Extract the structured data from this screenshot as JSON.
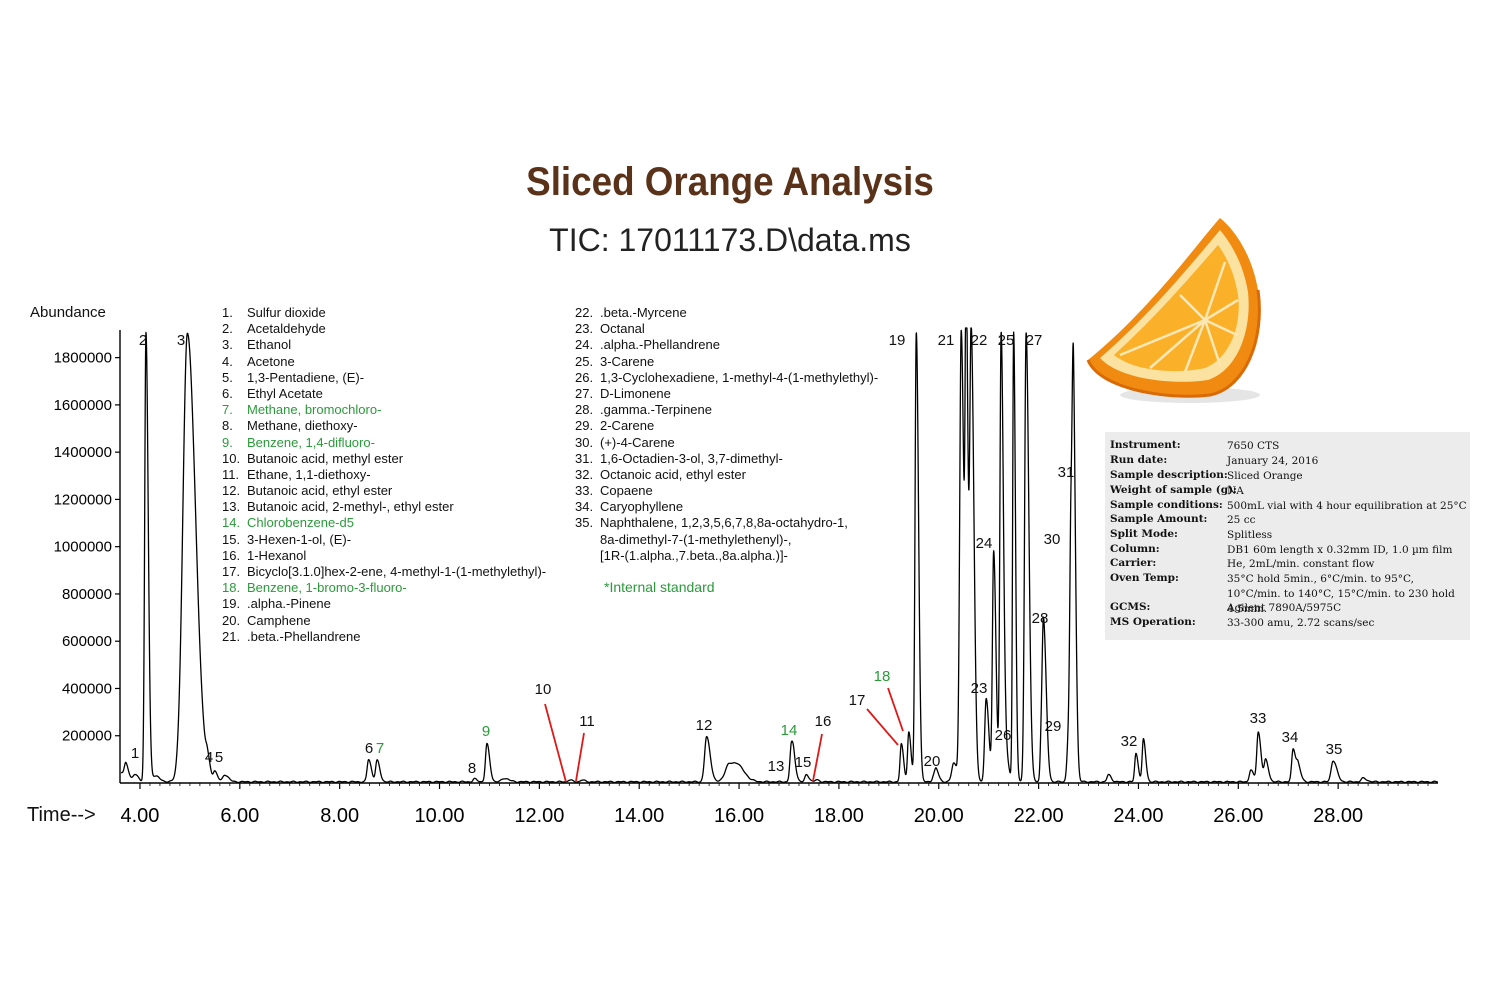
{
  "title": "Sliced Orange Analysis",
  "subtitle": "TIC: 17011173.D\\data.ms",
  "y_axis_title": "Abundance",
  "x_axis_title": "Time-->",
  "internal_standard_note": "*Internal standard",
  "colors": {
    "title": "#5a3219",
    "trace": "#000000",
    "standard": "#2a9a3a",
    "pointer": "#e01818",
    "info_bg": "#ececec"
  },
  "compounds_col1": [
    {
      "num": "1.",
      "name": "Sulfur dioxide",
      "standard": false
    },
    {
      "num": "2.",
      "name": "Acetaldehyde",
      "standard": false
    },
    {
      "num": "3.",
      "name": "Ethanol",
      "standard": false
    },
    {
      "num": "4.",
      "name": "Acetone",
      "standard": false
    },
    {
      "num": "5.",
      "name": "1,3-Pentadiene, (E)-",
      "standard": false
    },
    {
      "num": "6.",
      "name": "Ethyl Acetate",
      "standard": false
    },
    {
      "num": "7.",
      "name": "Methane, bromochloro-",
      "standard": true
    },
    {
      "num": "8.",
      "name": "Methane, diethoxy-",
      "standard": false
    },
    {
      "num": "9.",
      "name": "Benzene, 1,4-difluoro-",
      "standard": true
    },
    {
      "num": "10.",
      "name": "Butanoic acid, methyl ester",
      "standard": false
    },
    {
      "num": "11.",
      "name": "Ethane, 1,1-diethoxy-",
      "standard": false
    },
    {
      "num": "12.",
      "name": "Butanoic acid, ethyl ester",
      "standard": false
    },
    {
      "num": "13.",
      "name": "Butanoic acid, 2-methyl-, ethyl ester",
      "standard": false
    },
    {
      "num": "14.",
      "name": "Chlorobenzene-d5",
      "standard": true
    },
    {
      "num": "15.",
      "name": "3-Hexen-1-ol, (E)-",
      "standard": false
    },
    {
      "num": "16.",
      "name": "1-Hexanol",
      "standard": false
    },
    {
      "num": "17.",
      "name": "Bicyclo[3.1.0]hex-2-ene, 4-methyl-1-(1-methylethyl)-",
      "standard": false
    },
    {
      "num": "18.",
      "name": "Benzene, 1-bromo-3-fluoro-",
      "standard": true
    },
    {
      "num": "19.",
      "name": ".alpha.-Pinene",
      "standard": false
    },
    {
      "num": "20.",
      "name": "Camphene",
      "standard": false
    },
    {
      "num": "21.",
      "name": ".beta.-Phellandrene",
      "standard": false
    }
  ],
  "compounds_col2": [
    {
      "num": "22.",
      "name": ".beta.-Myrcene"
    },
    {
      "num": "23.",
      "name": "Octanal"
    },
    {
      "num": "24.",
      "name": ".alpha.-Phellandrene"
    },
    {
      "num": "25.",
      "name": "3-Carene"
    },
    {
      "num": "26.",
      "name": "1,3-Cyclohexadiene, 1-methyl-4-(1-methylethyl)-"
    },
    {
      "num": "27.",
      "name": "D-Limonene"
    },
    {
      "num": "28.",
      "name": ".gamma.-Terpinene"
    },
    {
      "num": "29.",
      "name": "2-Carene"
    },
    {
      "num": "30.",
      "name": "(+)-4-Carene"
    },
    {
      "num": "31.",
      "name": "1,6-Octadien-3-ol, 3,7-dimethyl-"
    },
    {
      "num": "32.",
      "name": "Octanoic acid, ethyl ester"
    },
    {
      "num": "33.",
      "name": "Copaene"
    },
    {
      "num": "34.",
      "name": "Caryophyllene"
    },
    {
      "num": "35.",
      "name": "Naphthalene, 1,2,3,5,6,7,8,8a-octahydro-1,"
    }
  ],
  "compound_35_continuation": [
    "8a-dimethyl-7-(1-methylethenyl)-,",
    "[1R-(1.alpha.,7.beta.,8a.alpha.)]-"
  ],
  "instrument_info": [
    {
      "key": "Instrument:",
      "value": "7650 CTS"
    },
    {
      "key": "Run date:",
      "value": "January 24, 2016"
    },
    {
      "key": "Sample description:",
      "value": "Sliced Orange"
    },
    {
      "key": "Weight of sample (g):",
      "value": "NA"
    },
    {
      "key": "Sample conditions:",
      "value": "500mL vial with 4 hour equilibration at 25°C"
    },
    {
      "key": "Sample Amount:",
      "value": "25 cc"
    },
    {
      "key": "Split Mode:",
      "value": "Splitless"
    },
    {
      "key": "Column:",
      "value": "DB1 60m length x 0.32mm ID, 1.0 µm film"
    },
    {
      "key": "Carrier:",
      "value": "He, 2mL/min. constant flow"
    },
    {
      "key": "Oven Temp:",
      "value": "35°C hold 5min., 6°C/min. to 95°C, 10°C/min. to 140°C, 15°C/min. to 230 hold 4.5min."
    },
    {
      "key": "GCMS:",
      "value": "Agilent 7890A/5975C"
    },
    {
      "key": "MS Operation:",
      "value": "33-300 amu, 2.72 scans/sec"
    }
  ],
  "chart_data": {
    "type": "line",
    "title": "Sliced Orange Analysis",
    "subtitle": "TIC: 17011173.D\\data.ms",
    "xlabel": "Time-->",
    "ylabel": "Abundance",
    "xlim": [
      3.6,
      30.0
    ],
    "ylim": [
      0,
      1900000
    ],
    "x_ticks": [
      "4.00",
      "6.00",
      "8.00",
      "10.00",
      "12.00",
      "14.00",
      "16.00",
      "18.00",
      "20.00",
      "22.00",
      "24.00",
      "26.00",
      "28.00"
    ],
    "x_tick_values": [
      4,
      6,
      8,
      10,
      12,
      14,
      16,
      18,
      20,
      22,
      24,
      26,
      28
    ],
    "y_ticks": [
      "200000",
      "400000",
      "600000",
      "800000",
      "1000000",
      "1200000",
      "1400000",
      "1600000",
      "1800000"
    ],
    "y_tick_values": [
      200000,
      400000,
      600000,
      800000,
      1000000,
      1200000,
      1400000,
      1600000,
      1800000
    ],
    "baseline": 5000,
    "peaks": [
      {
        "label": "1",
        "x": 3.72,
        "y": 60000,
        "w": 0.03,
        "label_style": "black"
      },
      {
        "label": "2",
        "x": 4.12,
        "y": 1900000,
        "w": 0.025,
        "label_style": "black"
      },
      {
        "label": "3",
        "x": 4.95,
        "y": 1900000,
        "w": 0.09,
        "label_style": "black"
      },
      {
        "label": "4",
        "x": 5.35,
        "y": 55000,
        "w": 0.03,
        "label_style": "black"
      },
      {
        "label": "5",
        "x": 5.5,
        "y": 40000,
        "w": 0.03,
        "label_style": "black"
      },
      {
        "label": "6",
        "x": 8.58,
        "y": 95000,
        "w": 0.03,
        "label_style": "black"
      },
      {
        "label": "7",
        "x": 8.75,
        "y": 90000,
        "w": 0.03,
        "label_style": "green"
      },
      {
        "label": "8",
        "x": 10.7,
        "y": 12000,
        "w": 0.03,
        "label_style": "black"
      },
      {
        "label": "9",
        "x": 10.95,
        "y": 160000,
        "w": 0.03,
        "label_style": "green"
      },
      {
        "label": "10",
        "x": 12.6,
        "y": 8000,
        "w": 0.03,
        "label_style": "red-pointer"
      },
      {
        "label": "11",
        "x": 12.85,
        "y": 8000,
        "w": 0.03,
        "label_style": "red-pointer"
      },
      {
        "label": "12",
        "x": 15.35,
        "y": 190000,
        "w": 0.04,
        "label_style": "black"
      },
      {
        "label": "13",
        "x": 17.05,
        "y": 160000,
        "w": 0.03,
        "label_style": "black"
      },
      {
        "label": "14",
        "x": 17.1,
        "y": 30000,
        "w": 0.03,
        "label_style": "green"
      },
      {
        "label": "15",
        "x": 17.35,
        "y": 30000,
        "w": 0.03,
        "label_style": "black"
      },
      {
        "label": "16",
        "x": 17.55,
        "y": 8000,
        "w": 0.03,
        "label_style": "red-pointer"
      },
      {
        "label": "17",
        "x": 19.25,
        "y": 160000,
        "w": 0.025,
        "label_style": "red-pointer"
      },
      {
        "label": "18",
        "x": 19.4,
        "y": 210000,
        "w": 0.025,
        "label_style": "red-pointer-green"
      },
      {
        "label": "19",
        "x": 19.55,
        "y": 1900000,
        "w": 0.025,
        "label_style": "black"
      },
      {
        "label": "20",
        "x": 19.95,
        "y": 40000,
        "w": 0.03,
        "label_style": "black"
      },
      {
        "label": "21",
        "x": 20.45,
        "y": 1900000,
        "w": 0.03,
        "label_style": "black"
      },
      {
        "label": "22",
        "x": 20.65,
        "y": 1900000,
        "w": 0.03,
        "label_style": "black"
      },
      {
        "label": "23",
        "x": 20.95,
        "y": 350000,
        "w": 0.03,
        "label_style": "black"
      },
      {
        "label": "24",
        "x": 21.1,
        "y": 970000,
        "w": 0.025,
        "label_style": "black"
      },
      {
        "label": "25",
        "x": 21.25,
        "y": 1900000,
        "w": 0.025,
        "label_style": "black"
      },
      {
        "label": "26",
        "x": 21.35,
        "y": 100000,
        "w": 0.03,
        "label_style": "black"
      },
      {
        "label": "27",
        "x": 21.75,
        "y": 1900000,
        "w": 0.03,
        "label_style": "black"
      },
      {
        "label": "28",
        "x": 22.1,
        "y": 650000,
        "w": 0.03,
        "label_style": "black"
      },
      {
        "label": "29",
        "x": 22.6,
        "y": 190000,
        "w": 0.03,
        "label_style": "black"
      },
      {
        "label": "30",
        "x": 22.65,
        "y": 980000,
        "w": 0.025,
        "label_style": "black"
      },
      {
        "label": "31",
        "x": 22.7,
        "y": 1240000,
        "w": 0.025,
        "label_style": "black"
      },
      {
        "label": "32",
        "x": 23.95,
        "y": 120000,
        "w": 0.025,
        "label_style": "black"
      },
      {
        "label": "33",
        "x": 26.4,
        "y": 210000,
        "w": 0.03,
        "label_style": "black"
      },
      {
        "label": "34",
        "x": 27.1,
        "y": 140000,
        "w": 0.03,
        "label_style": "black"
      },
      {
        "label": "35",
        "x": 27.9,
        "y": 90000,
        "w": 0.04,
        "label_style": "black"
      }
    ],
    "minor_peaks": [
      {
        "x": 3.9,
        "y": 30000,
        "w": 0.04
      },
      {
        "x": 4.3,
        "y": 25000,
        "w": 0.05
      },
      {
        "x": 5.7,
        "y": 30000,
        "w": 0.04
      },
      {
        "x": 11.3,
        "y": 15000,
        "w": 0.05
      },
      {
        "x": 15.8,
        "y": 75000,
        "w": 0.08
      },
      {
        "x": 16.0,
        "y": 45000,
        "w": 0.08
      },
      {
        "x": 19.9,
        "y": 25000,
        "w": 0.03
      },
      {
        "x": 20.3,
        "y": 80000,
        "w": 0.04
      },
      {
        "x": 20.55,
        "y": 1900000,
        "w": 0.02
      },
      {
        "x": 21.5,
        "y": 1900000,
        "w": 0.02
      },
      {
        "x": 22.05,
        "y": 120000,
        "w": 0.02
      },
      {
        "x": 23.4,
        "y": 30000,
        "w": 0.03
      },
      {
        "x": 24.1,
        "y": 180000,
        "w": 0.025
      },
      {
        "x": 26.25,
        "y": 50000,
        "w": 0.03
      },
      {
        "x": 26.55,
        "y": 90000,
        "w": 0.03
      },
      {
        "x": 27.2,
        "y": 60000,
        "w": 0.03
      },
      {
        "x": 28.5,
        "y": 15000,
        "w": 0.04
      }
    ]
  }
}
